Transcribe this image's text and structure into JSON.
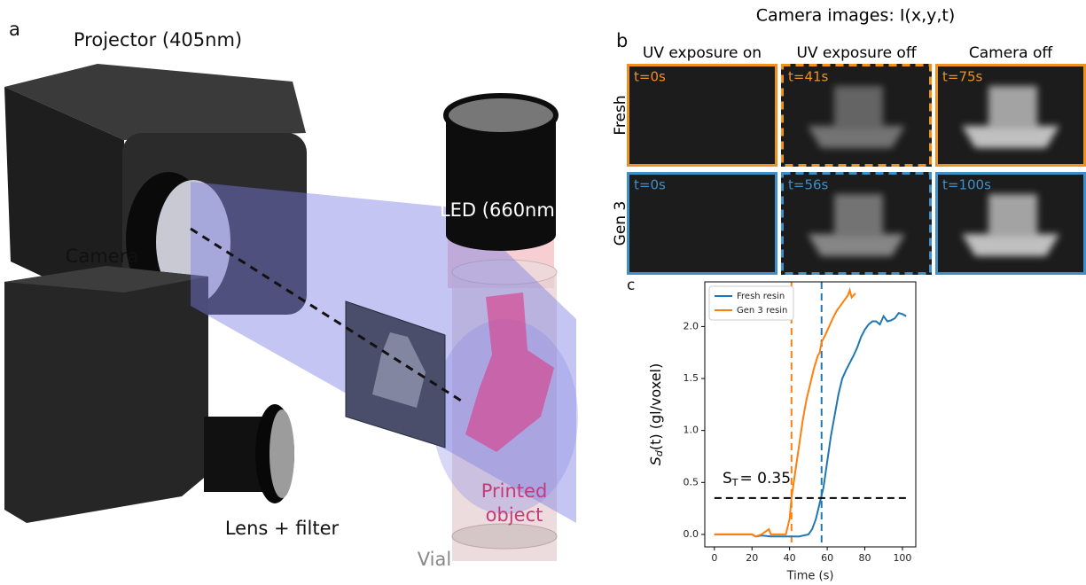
{
  "panel_a": {
    "letter": "a",
    "projector": "Projector (405nm)",
    "led": "LED (660nm)",
    "camera": "Camera",
    "lens": "Lens + filter",
    "printed": [
      "Printed",
      "object"
    ],
    "vial": "Vial"
  },
  "panel_b": {
    "letter": "b",
    "title": "Camera images: I(x,y,t)",
    "columns": [
      "UV exposure on",
      "UV exposure off",
      "Camera off"
    ],
    "rows": [
      {
        "name": "Fresh",
        "color": "#f0901e",
        "cells": [
          "t=0s",
          "t=41s",
          "t=75s"
        ]
      },
      {
        "name": "Gen 3",
        "color": "#3f8fc8",
        "cells": [
          "t=0s",
          "t=56s",
          "t=100s"
        ]
      }
    ]
  },
  "chart_data": {
    "type": "line",
    "letter": "c",
    "x_label": "Time (s)",
    "y_label": {
      "symbol": "S",
      "sub": "d",
      "rest": "(t) (gl/voxel)"
    },
    "xlim": [
      -5.1,
      107.1
    ],
    "ylim": [
      -0.12,
      2.43
    ],
    "xticks": [
      0,
      20,
      40,
      60,
      80,
      100
    ],
    "yticks": [
      {
        "value": 0,
        "label": "0.0"
      },
      0.5,
      {
        "value": 1,
        "label": "1.0"
      },
      1.5,
      {
        "value": 2,
        "label": "2.0"
      }
    ],
    "legend": "upper-left",
    "series": [
      {
        "name": "Fresh resin",
        "color": "#1f77b4",
        "x": [
          0,
          10,
          20,
          22,
          25,
          30,
          35,
          40,
          45,
          50,
          52,
          54,
          56,
          58,
          60,
          62,
          64,
          66,
          68,
          70,
          72,
          74,
          76,
          78,
          80,
          82,
          84,
          86,
          88,
          90,
          92,
          94,
          96,
          98,
          100,
          102
        ],
        "values": [
          0,
          0,
          0,
          -0.02,
          -0.01,
          -0.02,
          -0.02,
          -0.02,
          -0.02,
          0,
          0.05,
          0.15,
          0.3,
          0.45,
          0.7,
          0.95,
          1.15,
          1.35,
          1.5,
          1.58,
          1.65,
          1.72,
          1.8,
          1.9,
          1.97,
          2.02,
          2.05,
          2.05,
          2.02,
          2.1,
          2.05,
          2.06,
          2.08,
          2.13,
          2.12,
          2.1
        ]
      },
      {
        "name": "Gen 3 resin",
        "color": "#ff7f0e",
        "x": [
          0,
          10,
          20,
          22,
          25,
          29,
          30,
          35,
          38,
          40,
          41,
          43,
          45,
          47,
          49,
          51,
          53,
          55,
          56,
          57,
          59,
          61,
          63,
          65,
          67,
          69,
          71,
          72,
          73,
          75
        ],
        "values": [
          0,
          0,
          0,
          -0.02,
          0,
          0.05,
          0,
          0,
          0,
          0.15,
          0.35,
          0.6,
          0.85,
          1.1,
          1.3,
          1.45,
          1.6,
          1.72,
          1.75,
          1.85,
          1.92,
          2.0,
          2.08,
          2.15,
          2.2,
          2.25,
          2.3,
          2.35,
          2.28,
          2.32
        ]
      }
    ],
    "markers": [
      {
        "x": 41,
        "color": "#ff7f0e"
      },
      {
        "x": 57,
        "color": "#1f77b4"
      }
    ],
    "threshold": {
      "value": 0.35,
      "symbol": "S",
      "sub": "T",
      "rest": "= 0.35"
    }
  }
}
